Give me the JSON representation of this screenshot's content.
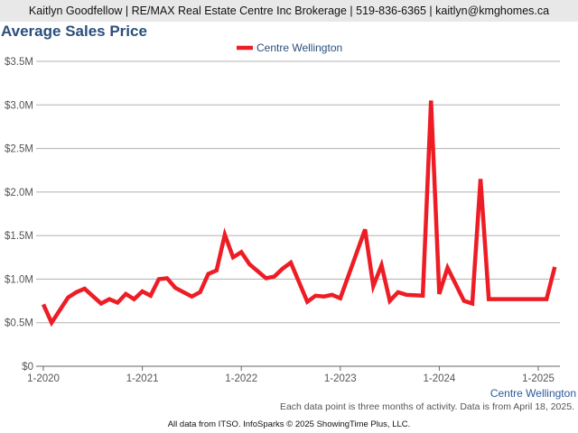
{
  "header": "Kaitlyn Goodfellow | RE/MAX Real Estate Centre Inc Brokerage | 519-836-6365 | kaitlyn@kmghomes.ca",
  "note": "Each data point is three months of activity. Data is from April 18, 2025.",
  "footer": "All data from ITSO. InfoSparks © 2025 ShowingTime Plus, LLC.",
  "chart_data": {
    "type": "line",
    "title": "Average Sales Price",
    "xlabel": "Centre Wellington",
    "ylabel": "",
    "ylim": [
      0,
      3500000
    ],
    "grid": true,
    "legend_placement": "top-center",
    "y_ticks": [
      0,
      500000,
      1000000,
      1500000,
      2000000,
      2500000,
      3000000,
      3500000
    ],
    "y_tick_labels": [
      "$0",
      "$0.5M",
      "$1.0M",
      "$1.5M",
      "$2.0M",
      "$2.5M",
      "$3.0M",
      "$3.5M"
    ],
    "x_note": "x = months since January 2020",
    "x_ticks": [
      0,
      12,
      24,
      36,
      48,
      60
    ],
    "x_tick_labels": [
      "1-2020",
      "1-2021",
      "1-2022",
      "1-2023",
      "1-2024",
      "1-2025"
    ],
    "xlim": [
      -1,
      63.5
    ],
    "series": [
      {
        "name": "Centre Wellington",
        "color": "#ee1c25",
        "x": [
          0,
          1,
          3,
          4,
          5,
          7,
          8,
          9,
          10,
          11,
          12,
          13,
          14,
          15,
          16,
          18,
          19,
          20,
          21,
          22,
          23,
          24,
          25,
          27,
          28,
          29,
          30,
          32,
          33,
          34,
          35,
          36,
          39,
          40,
          41,
          42,
          43,
          44,
          46,
          47,
          48,
          49,
          51,
          52,
          53,
          54,
          61,
          62
        ],
        "values": [
          710000,
          500000,
          790000,
          850000,
          890000,
          720000,
          770000,
          730000,
          830000,
          770000,
          860000,
          810000,
          1000000,
          1010000,
          900000,
          800000,
          850000,
          1060000,
          1100000,
          1510000,
          1250000,
          1310000,
          1170000,
          1010000,
          1030000,
          1120000,
          1190000,
          740000,
          810000,
          800000,
          820000,
          780000,
          1570000,
          920000,
          1160000,
          750000,
          850000,
          820000,
          810000,
          3050000,
          830000,
          1130000,
          750000,
          720000,
          2150000,
          770000,
          770000,
          1140000
        ]
      }
    ]
  }
}
